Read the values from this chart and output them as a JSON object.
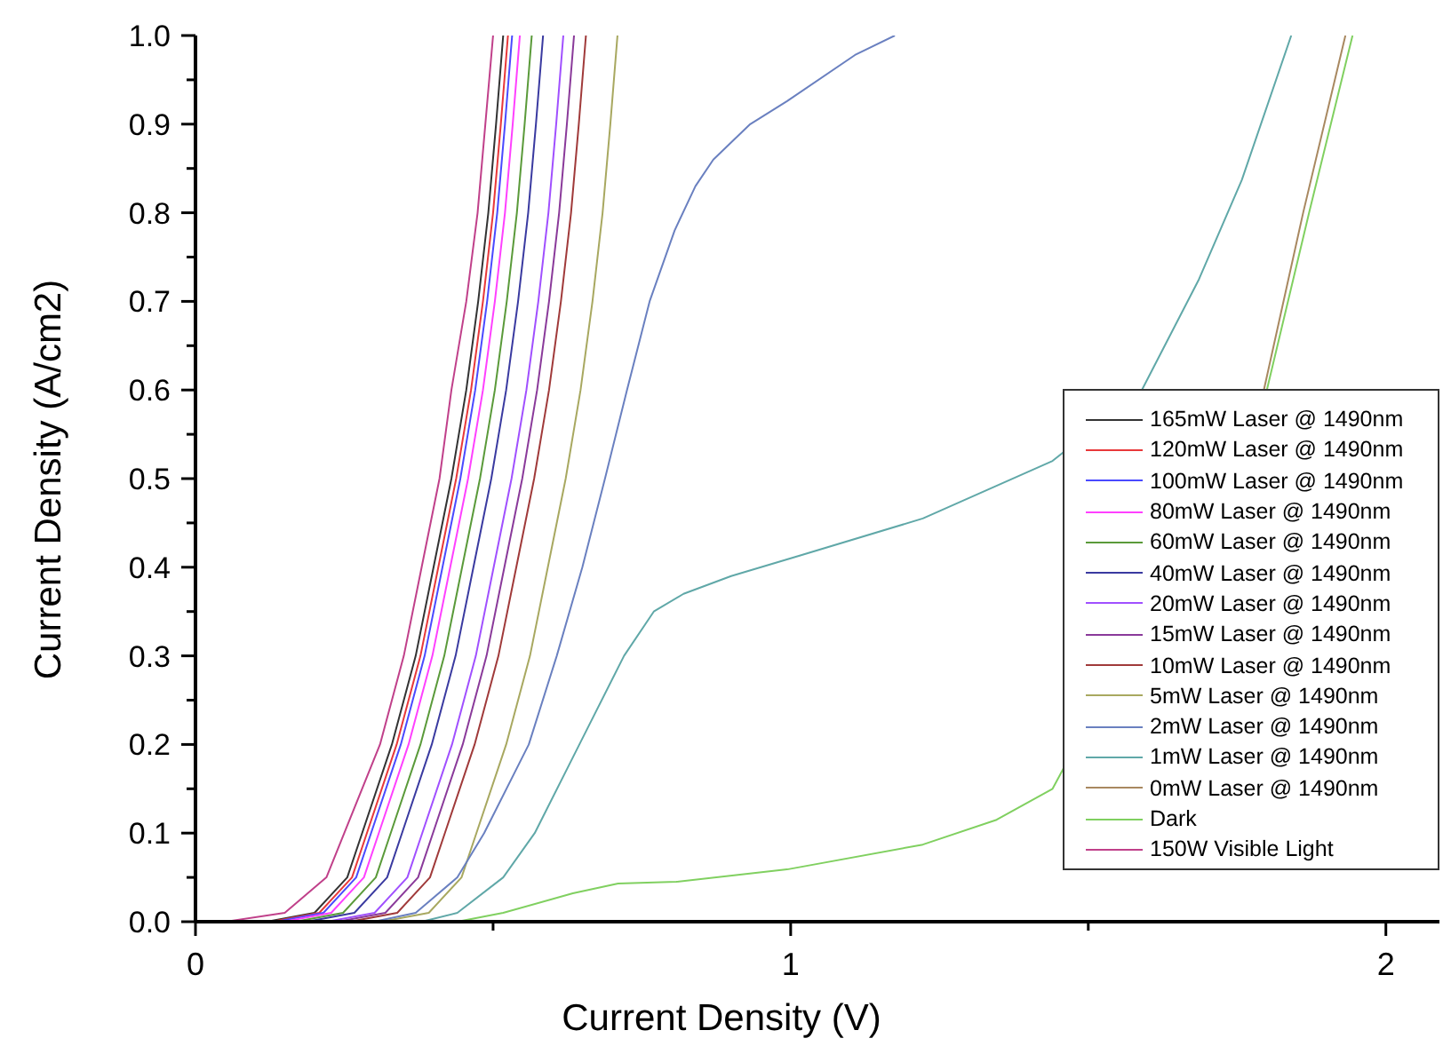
{
  "chart_data": {
    "type": "line",
    "xlabel": "Current Density (V)",
    "ylabel": "Current Density (A/cm2)",
    "xlim": [
      0,
      2.09
    ],
    "ylim": [
      0,
      1
    ],
    "xticks": [
      0,
      {
        "value": 0.5,
        "label": null
      },
      1,
      {
        "value": 1.5,
        "label": null
      },
      2
    ],
    "yticks": [
      {
        "value": 0,
        "label": "0.0"
      },
      {
        "value": 0.05,
        "label": null
      },
      0.1,
      {
        "value": 0.15,
        "label": null
      },
      0.2,
      {
        "value": 0.25,
        "label": null
      },
      0.3,
      {
        "value": 0.35,
        "label": null
      },
      0.4,
      {
        "value": 0.45,
        "label": null
      },
      0.5,
      {
        "value": 0.55,
        "label": null
      },
      0.6,
      {
        "value": 0.65,
        "label": null
      },
      0.7,
      {
        "value": 0.75,
        "label": null
      },
      0.8,
      {
        "value": 0.85,
        "label": null
      },
      0.9,
      {
        "value": 0.95,
        "label": null
      },
      {
        "value": 1,
        "label": "1.0"
      }
    ],
    "grid": false,
    "legend": "bottom right",
    "series": [
      {
        "name": "165mW Laser @ 1490nm",
        "color": "#333333",
        "x": [
          0.12,
          0.2,
          0.255,
          0.28,
          0.33,
          0.37,
          0.4,
          0.43,
          0.455,
          0.475,
          0.492,
          0.505,
          0.517
        ],
        "values": [
          0,
          0.01,
          0.05,
          0.1,
          0.2,
          0.3,
          0.4,
          0.5,
          0.6,
          0.7,
          0.8,
          0.9,
          1
        ]
      },
      {
        "name": "120mW Laser @ 1490nm",
        "color": "#e8383a",
        "x": [
          0.128,
          0.208,
          0.263,
          0.288,
          0.338,
          0.378,
          0.408,
          0.438,
          0.463,
          0.483,
          0.5,
          0.513,
          0.525
        ],
        "values": [
          0,
          0.01,
          0.05,
          0.1,
          0.2,
          0.3,
          0.4,
          0.5,
          0.6,
          0.7,
          0.8,
          0.9,
          1
        ]
      },
      {
        "name": "100mW Laser @ 1490nm",
        "color": "#4a4aff",
        "x": [
          0.135,
          0.215,
          0.27,
          0.295,
          0.345,
          0.385,
          0.415,
          0.445,
          0.47,
          0.49,
          0.507,
          0.52,
          0.532
        ],
        "values": [
          0,
          0.01,
          0.05,
          0.1,
          0.2,
          0.3,
          0.4,
          0.5,
          0.6,
          0.7,
          0.8,
          0.9,
          1
        ]
      },
      {
        "name": "80mW Laser @ 1490nm",
        "color": "#ff40ff",
        "x": [
          0.148,
          0.228,
          0.283,
          0.308,
          0.358,
          0.398,
          0.428,
          0.458,
          0.483,
          0.503,
          0.52,
          0.533,
          0.545
        ],
        "values": [
          0,
          0.01,
          0.05,
          0.1,
          0.2,
          0.3,
          0.4,
          0.5,
          0.6,
          0.7,
          0.8,
          0.9,
          1
        ]
      },
      {
        "name": "60mW Laser @ 1490nm",
        "color": "#5a9a3a",
        "x": [
          0.168,
          0.248,
          0.303,
          0.328,
          0.378,
          0.418,
          0.448,
          0.478,
          0.503,
          0.523,
          0.54,
          0.553,
          0.565
        ],
        "values": [
          0,
          0.01,
          0.05,
          0.1,
          0.2,
          0.3,
          0.4,
          0.5,
          0.6,
          0.7,
          0.8,
          0.9,
          1
        ]
      },
      {
        "name": "40mW Laser @ 1490nm",
        "color": "#3a3aa0",
        "x": [
          0.187,
          0.267,
          0.322,
          0.347,
          0.397,
          0.437,
          0.467,
          0.497,
          0.522,
          0.542,
          0.559,
          0.572,
          0.584
        ],
        "values": [
          0,
          0.01,
          0.05,
          0.1,
          0.2,
          0.3,
          0.4,
          0.5,
          0.6,
          0.7,
          0.8,
          0.9,
          1
        ]
      },
      {
        "name": "20mW Laser @ 1490nm",
        "color": "#a050ff",
        "x": [
          0.221,
          0.301,
          0.356,
          0.381,
          0.431,
          0.471,
          0.501,
          0.531,
          0.556,
          0.576,
          0.593,
          0.606,
          0.618
        ],
        "values": [
          0,
          0.01,
          0.05,
          0.1,
          0.2,
          0.3,
          0.4,
          0.5,
          0.6,
          0.7,
          0.8,
          0.9,
          1
        ]
      },
      {
        "name": "15mW Laser @ 1490nm",
        "color": "#8a3a9a",
        "x": [
          0.239,
          0.319,
          0.374,
          0.399,
          0.449,
          0.489,
          0.519,
          0.549,
          0.574,
          0.594,
          0.611,
          0.624,
          0.636
        ],
        "values": [
          0,
          0.01,
          0.05,
          0.1,
          0.2,
          0.3,
          0.4,
          0.5,
          0.6,
          0.7,
          0.8,
          0.9,
          1
        ]
      },
      {
        "name": "10mW Laser @ 1490nm",
        "color": "#a03a3a",
        "x": [
          0.259,
          0.339,
          0.394,
          0.419,
          0.469,
          0.509,
          0.539,
          0.569,
          0.594,
          0.614,
          0.631,
          0.644,
          0.656
        ],
        "values": [
          0,
          0.01,
          0.05,
          0.1,
          0.2,
          0.3,
          0.4,
          0.5,
          0.6,
          0.7,
          0.8,
          0.9,
          1
        ]
      },
      {
        "name": "5mW Laser @ 1490nm",
        "color": "#a8a860",
        "x": [
          0.312,
          0.392,
          0.447,
          0.472,
          0.522,
          0.562,
          0.592,
          0.622,
          0.647,
          0.667,
          0.684,
          0.697,
          0.709
        ],
        "values": [
          0,
          0.01,
          0.05,
          0.1,
          0.2,
          0.3,
          0.4,
          0.5,
          0.6,
          0.7,
          0.8,
          0.9,
          1
        ]
      },
      {
        "name": "2mW Laser @ 1490nm",
        "color": "#6a80c0",
        "x": [
          0.3,
          0.37,
          0.44,
          0.485,
          0.56,
          0.607,
          0.65,
          0.688,
          0.725,
          0.763,
          0.805,
          0.84,
          0.87,
          0.932,
          0.994,
          1.108,
          1.175
        ],
        "values": [
          0,
          0.01,
          0.05,
          0.1,
          0.2,
          0.3,
          0.4,
          0.5,
          0.6,
          0.7,
          0.78,
          0.83,
          0.86,
          0.9,
          0.926,
          0.978,
          1
        ]
      },
      {
        "name": "1mW Laser @ 1490nm",
        "color": "#60a8a8",
        "x": [
          0.38,
          0.44,
          0.517,
          0.57,
          0.645,
          0.72,
          0.77,
          0.82,
          0.9,
          1.015,
          1.222,
          1.44,
          1.59,
          1.686,
          1.758,
          1.841
        ],
        "values": [
          0,
          0.01,
          0.05,
          0.1,
          0.2,
          0.3,
          0.35,
          0.37,
          0.39,
          0.413,
          0.455,
          0.52,
          0.6,
          0.725,
          0.837,
          1
        ]
      },
      {
        "name": "0mW Laser @ 1490nm",
        "color": "#a88860",
        "x": [
          1.795,
          1.861,
          1.932
        ],
        "values": [
          0.6,
          0.8,
          1
        ]
      },
      {
        "name": "Dark",
        "color": "#80d060",
        "x": [
          0.44,
          0.517,
          0.634,
          0.71,
          0.808,
          0.994,
          1.222,
          1.346,
          1.44,
          1.8,
          1.871,
          1.944
        ],
        "values": [
          0,
          0.01,
          0.032,
          0.043,
          0.045,
          0.059,
          0.087,
          0.115,
          0.15,
          0.6,
          0.8,
          1
        ]
      },
      {
        "name": "150W Visible Light",
        "color": "#c0408a",
        "x": [
          0.05,
          0.15,
          0.22,
          0.25,
          0.31,
          0.35,
          0.38,
          0.41,
          0.43,
          0.455,
          0.474,
          0.487,
          0.5
        ],
        "values": [
          0,
          0.01,
          0.05,
          0.1,
          0.2,
          0.3,
          0.4,
          0.5,
          0.6,
          0.7,
          0.8,
          0.9,
          1
        ]
      }
    ]
  }
}
